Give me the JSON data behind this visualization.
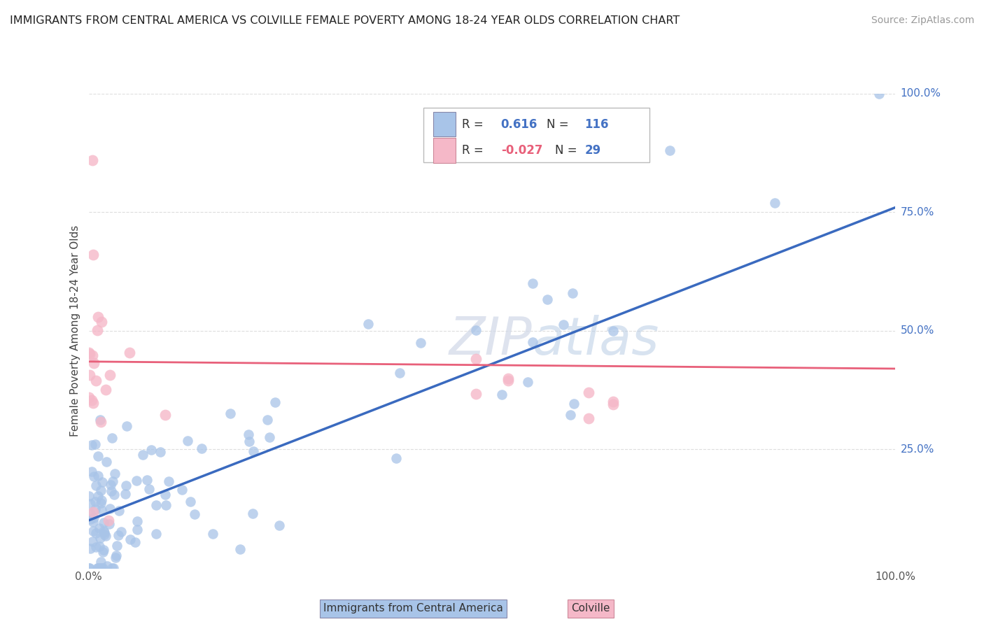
{
  "title": "IMMIGRANTS FROM CENTRAL AMERICA VS COLVILLE FEMALE POVERTY AMONG 18-24 YEAR OLDS CORRELATION CHART",
  "source": "Source: ZipAtlas.com",
  "ylabel": "Female Poverty Among 18-24 Year Olds",
  "watermark_zip": "ZIP",
  "watermark_atlas": "atlas",
  "legend_blue_R": "0.616",
  "legend_blue_N": "116",
  "legend_pink_R": "-0.027",
  "legend_pink_N": "29",
  "legend_blue_label": "Immigrants from Central America",
  "legend_pink_label": "Colville",
  "blue_scatter_color": "#a8c4e8",
  "pink_scatter_color": "#f5b8c8",
  "line_blue_color": "#3a6abf",
  "line_pink_color": "#e8607a",
  "R_value_color": "#4472c4",
  "R_label_color": "#444444",
  "N_value_color": "#4472c4",
  "title_color": "#222222",
  "source_color": "#999999",
  "ytick_color": "#4472c4",
  "background_color": "#ffffff",
  "grid_color": "#dddddd",
  "blue_line_x0": 0.0,
  "blue_line_x1": 1.0,
  "blue_line_y0": 0.1,
  "blue_line_y1": 0.76,
  "pink_line_x0": 0.0,
  "pink_line_x1": 1.0,
  "pink_line_y0": 0.435,
  "pink_line_y1": 0.42,
  "xlim": [
    0.0,
    1.0
  ],
  "ylim": [
    0.0,
    1.0
  ],
  "yticks": [
    0.25,
    0.5,
    0.75,
    1.0
  ],
  "ytick_labels": [
    "25.0%",
    "50.0%",
    "75.0%",
    "100.0%"
  ]
}
